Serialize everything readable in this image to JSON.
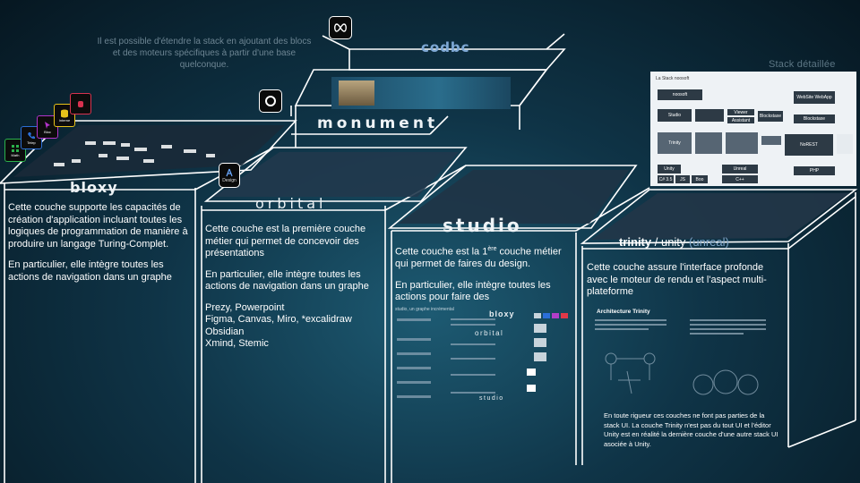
{
  "intro_text": "Il est possible d'étendre la stack en ajoutant des blocs et des moteurs spécifiques à partir d'une base quelconque.",
  "stack_detail_title": "Stack détaillée",
  "layers": {
    "codbc": {
      "name": "codbc"
    },
    "monument": {
      "name": "monument"
    },
    "bloxy": {
      "name": "bloxy",
      "text1": "Cette couche supporte les capacités de création d'application incluant toutes les logiques de programmation de manière à produire un langage Turing-Complet.",
      "text2": "En particulier, elle intègre toutes les actions de navigation dans un graphe"
    },
    "orbital": {
      "name": "orbital",
      "text1": "Cette couche est la première couche métier qui permet de concevoir des présentations",
      "text2": " En particulier, elle intègre toutes les actions de navigation dans un graphe",
      "tools": [
        "Prezy, Powerpoint",
        "Figma, Canvas, Miro, *excalidraw",
        "Obsidian",
        "Xmind, Stemic"
      ]
    },
    "studio": {
      "name": "studio",
      "text1_pre": "Cette couche est la 1",
      "text1_sup": "ère",
      "text1_post": " couche métier qui permet de faires du design.",
      "text2": "En particulier, elle intègre toutes les actions pour faire des"
    },
    "trinity": {
      "name_bold": "trinity",
      "name_sep": " / unity ",
      "name_paren": "(unreal)",
      "text1": "Cette couche assure l'interface profonde avec le moteur de rendu et l'aspect multi-plateforme"
    }
  },
  "side_icons": [
    {
      "label": "Math",
      "icon": "math-icon",
      "color": "#2bb24c"
    },
    {
      "label": "Telep",
      "icon": "phone-icon",
      "color": "#2c6fd6"
    },
    {
      "label": "Bloc",
      "icon": "cursor-icon",
      "color": "#b233c9"
    },
    {
      "label": "Interne",
      "icon": "database-icon",
      "color": "#e7c21a"
    },
    {
      "label": "",
      "icon": "hand-icon",
      "color": "#d8324f"
    }
  ],
  "design_icon_label": "Design",
  "stack_card": {
    "caption": "La Stack noosoft",
    "blocks": [
      "noosoft",
      "Studio",
      "Viewer",
      "Assistant",
      "Blockstaxe",
      "Trinity",
      "Unity",
      "C# 3.5",
      "JS",
      "Boo",
      "Unreal",
      "C++",
      "WebSite",
      "WebApp",
      "Blockstaxe",
      "NoREST",
      "PHP"
    ]
  },
  "studio_image_caption": "studio, un graphe incrémental",
  "studio_image_labels": [
    "bloxy",
    "orbital",
    "studio"
  ],
  "trinity_image_caption": "Architecture Trinity",
  "footnote": "En toute rigueur ces couches ne font pas parties de la stack UI. La couche Trinity n'est pas du tout UI et l'éditor Unity est en réalité la dernière couche d'une autre stack UI asociée à Unity."
}
